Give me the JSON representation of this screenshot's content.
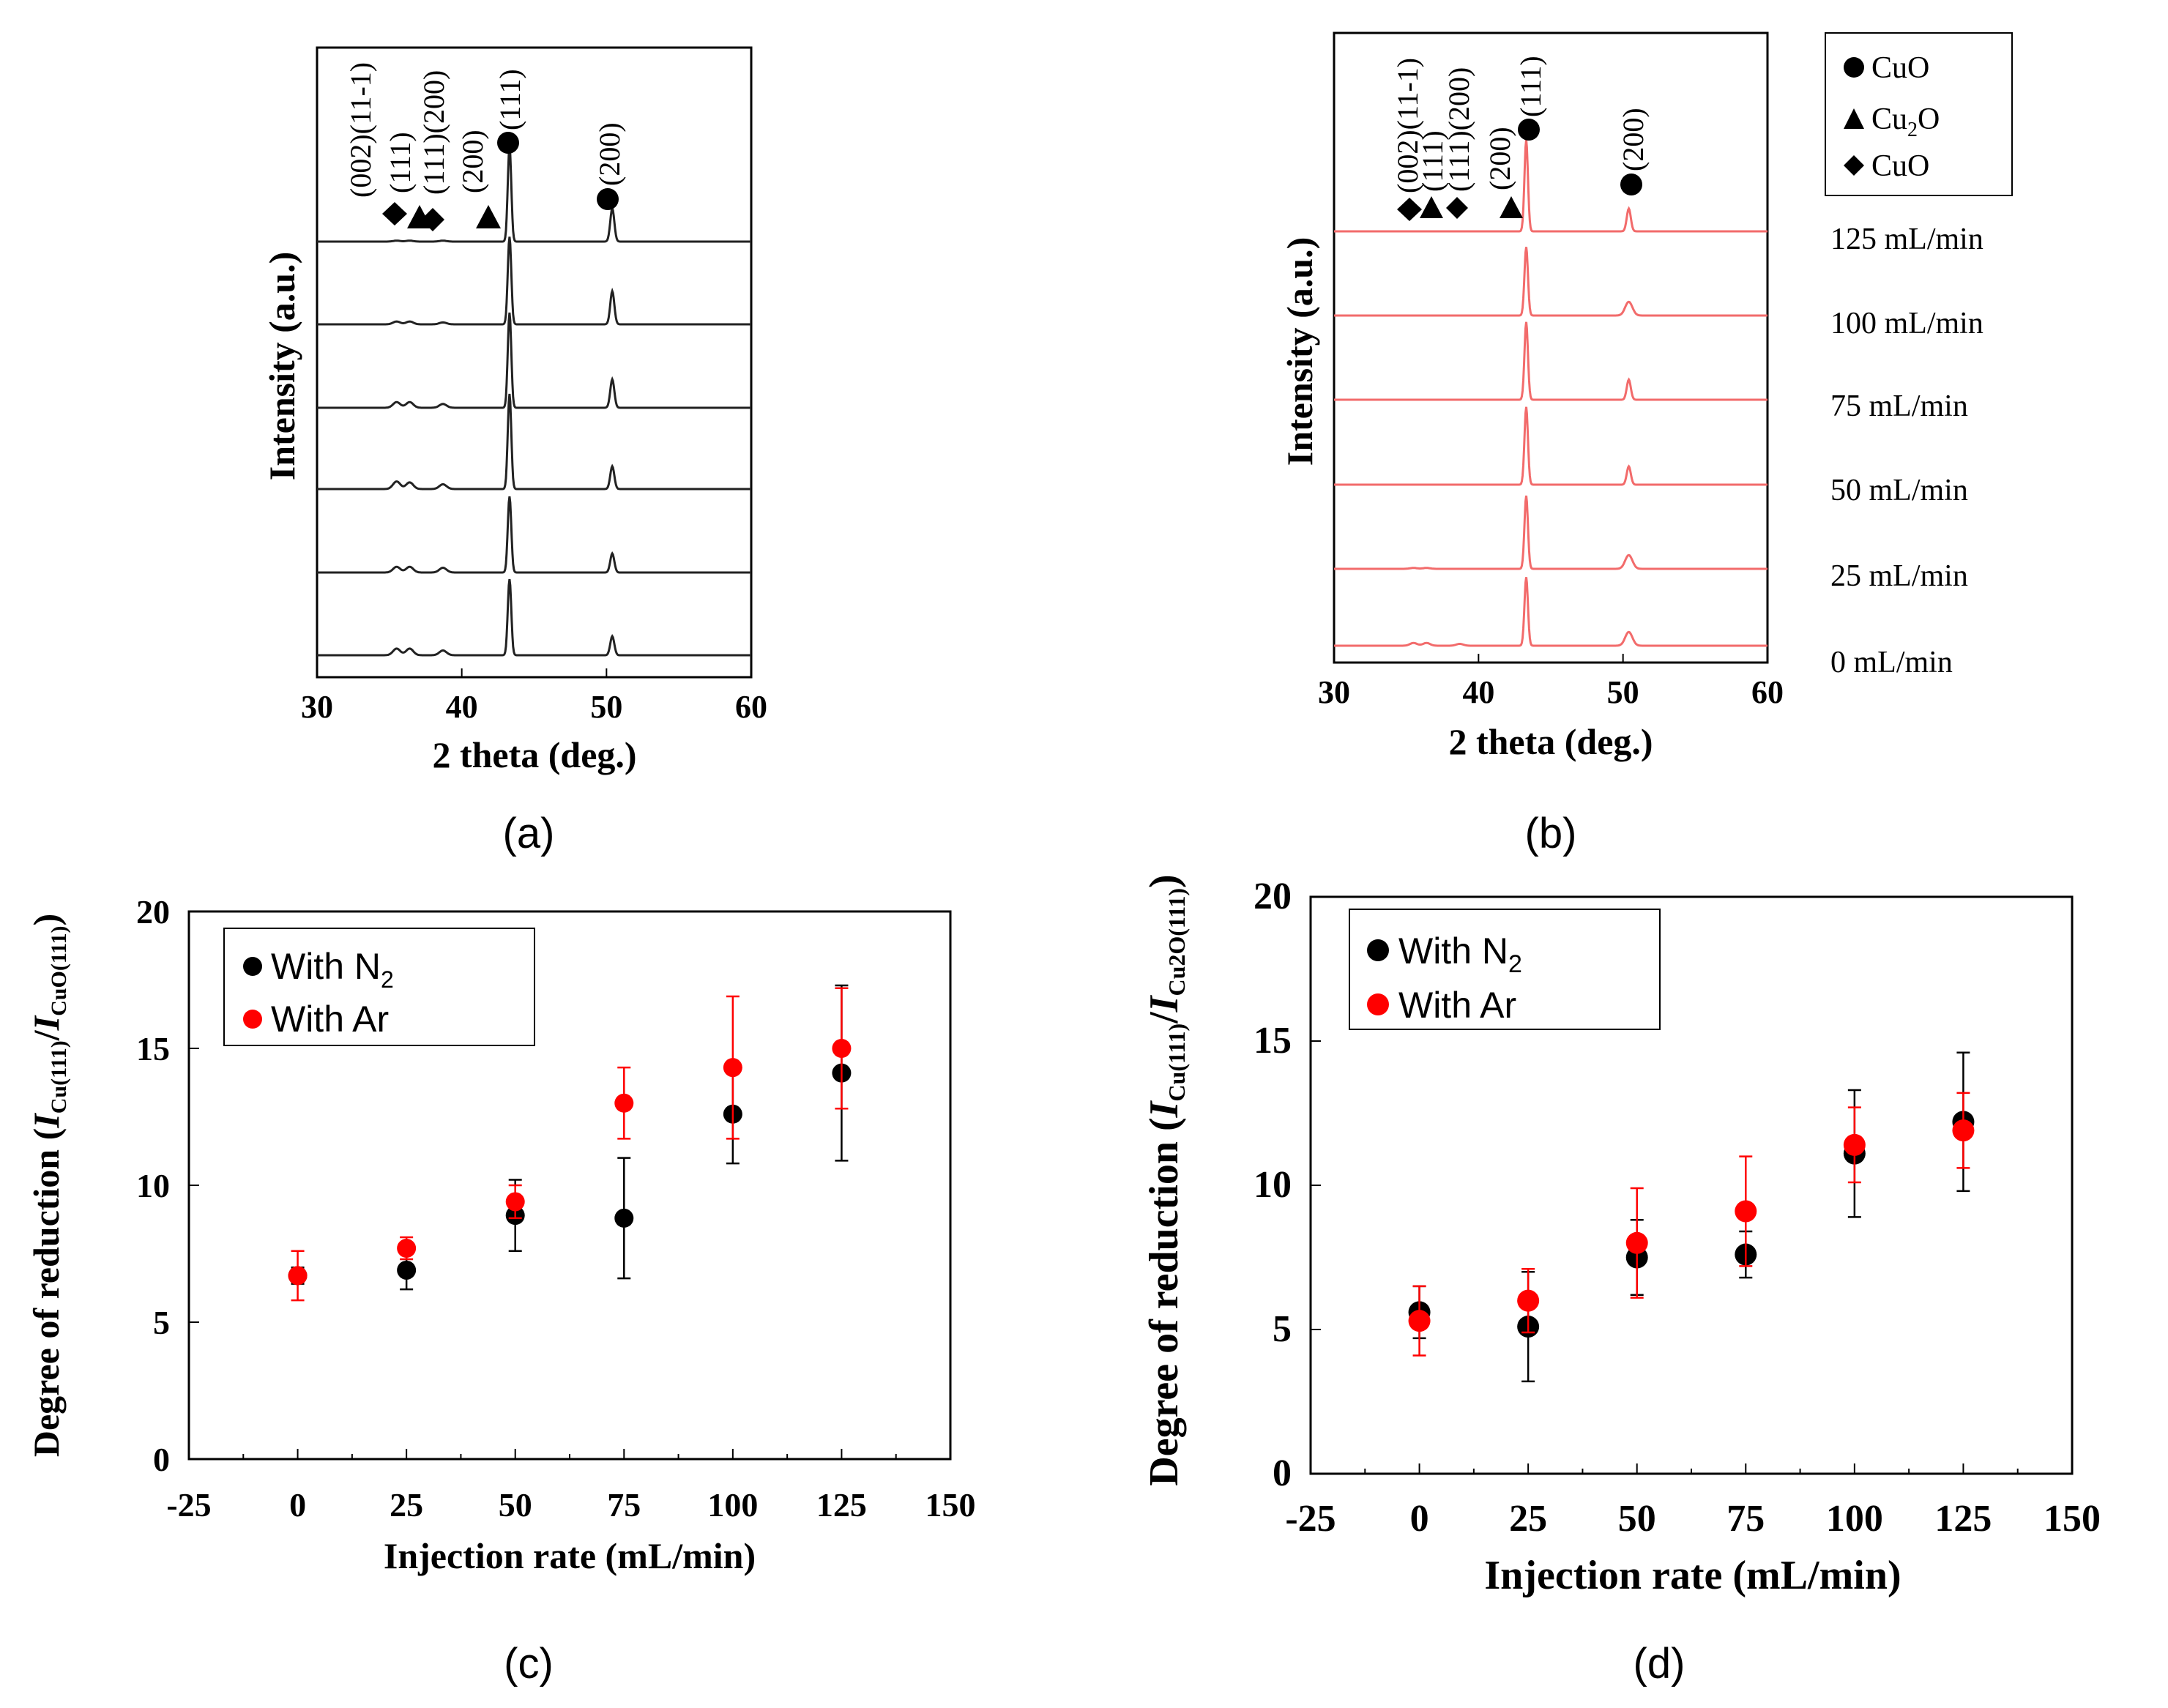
{
  "captions": {
    "a": "(a)",
    "b": "(b)",
    "c": "(c)",
    "d": "(d)"
  },
  "peak_labels": {
    "cuo_002_111": "(002)(11-1)",
    "cu2o_111": "(111)",
    "cuo_111_200": "(111)(200)",
    "cu2o_200": "(200)",
    "cu_111": "(111)",
    "cu_200": "(200)"
  },
  "legend_b": {
    "cuo_circle": "CuO",
    "cu2o_tri_main": "Cu",
    "cu2o_tri_sub": "2",
    "cu2o_tri_tail": "O",
    "cuo_diamond": "CuO"
  },
  "legend_cd": {
    "n2_main": "With N",
    "n2_sub": "2",
    "ar": "With Ar"
  },
  "colors": {
    "n2": "#000000",
    "ar": "#ff0000",
    "xrd_b": "#f26b6b"
  },
  "chart_data": [
    {
      "id": "a",
      "type": "line",
      "title": "",
      "xlabel": "2 theta (deg.)",
      "ylabel": "Intensity (a.u.)",
      "xlim": [
        30,
        60
      ],
      "xticks": [
        "30",
        "40",
        "50",
        "60"
      ],
      "series": [
        {
          "name": "125 mL/min",
          "peaks": [
            {
              "x": 35.5,
              "h": 0.01
            },
            {
              "x": 36.4,
              "h": 0.01
            },
            {
              "x": 38.7,
              "h": 0.01
            },
            {
              "x": 43.3,
              "h": 1.0
            },
            {
              "x": 50.4,
              "h": 0.35
            }
          ]
        },
        {
          "name": "100 mL/min",
          "peaks": [
            {
              "x": 35.5,
              "h": 0.03
            },
            {
              "x": 36.4,
              "h": 0.03
            },
            {
              "x": 38.7,
              "h": 0.02
            },
            {
              "x": 43.3,
              "h": 0.92
            },
            {
              "x": 50.4,
              "h": 0.35
            }
          ]
        },
        {
          "name": "75 mL/min",
          "peaks": [
            {
              "x": 35.5,
              "h": 0.06
            },
            {
              "x": 36.4,
              "h": 0.06
            },
            {
              "x": 38.7,
              "h": 0.04
            },
            {
              "x": 43.3,
              "h": 1.0
            },
            {
              "x": 50.4,
              "h": 0.3
            }
          ]
        },
        {
          "name": "50 mL/min",
          "peaks": [
            {
              "x": 35.5,
              "h": 0.08
            },
            {
              "x": 36.4,
              "h": 0.07
            },
            {
              "x": 38.7,
              "h": 0.05
            },
            {
              "x": 43.3,
              "h": 1.0
            },
            {
              "x": 50.4,
              "h": 0.24
            }
          ]
        },
        {
          "name": "25 mL/min",
          "peaks": [
            {
              "x": 35.5,
              "h": 0.06
            },
            {
              "x": 36.4,
              "h": 0.06
            },
            {
              "x": 38.7,
              "h": 0.05
            },
            {
              "x": 43.3,
              "h": 0.8
            },
            {
              "x": 50.4,
              "h": 0.2
            }
          ]
        },
        {
          "name": "0 mL/min",
          "peaks": [
            {
              "x": 35.5,
              "h": 0.07
            },
            {
              "x": 36.4,
              "h": 0.07
            },
            {
              "x": 38.7,
              "h": 0.05
            },
            {
              "x": 43.3,
              "h": 0.8
            },
            {
              "x": 50.4,
              "h": 0.2
            }
          ]
        }
      ]
    },
    {
      "id": "b",
      "type": "line",
      "title": "",
      "xlabel": "2 theta (deg.)",
      "ylabel": "Intensity (a.u.)",
      "xlim": [
        30,
        60
      ],
      "xticks": [
        "30",
        "40",
        "50",
        "60"
      ],
      "series": [
        {
          "name": "125 mL/min",
          "peaks": [
            {
              "x": 35.5,
              "h": 0.0
            },
            {
              "x": 36.4,
              "h": 0.0
            },
            {
              "x": 38.7,
              "h": 0.0
            },
            {
              "x": 43.3,
              "h": 1.0
            },
            {
              "x": 50.4,
              "h": 0.25
            }
          ]
        },
        {
          "name": "100 mL/min",
          "peaks": [
            {
              "x": 35.5,
              "h": 0.0
            },
            {
              "x": 36.4,
              "h": 0.0
            },
            {
              "x": 38.7,
              "h": 0.0
            },
            {
              "x": 43.3,
              "h": 0.75
            },
            {
              "x": 50.4,
              "h": 0.15
            }
          ]
        },
        {
          "name": "75 mL/min",
          "peaks": [
            {
              "x": 35.5,
              "h": 0.0
            },
            {
              "x": 36.4,
              "h": 0.0
            },
            {
              "x": 38.7,
              "h": 0.0
            },
            {
              "x": 43.3,
              "h": 0.85
            },
            {
              "x": 50.4,
              "h": 0.22
            }
          ]
        },
        {
          "name": "50 mL/min",
          "peaks": [
            {
              "x": 35.5,
              "h": 0.0
            },
            {
              "x": 36.4,
              "h": 0.0
            },
            {
              "x": 38.7,
              "h": 0.0
            },
            {
              "x": 43.3,
              "h": 0.85
            },
            {
              "x": 50.4,
              "h": 0.2
            }
          ]
        },
        {
          "name": "25 mL/min",
          "peaks": [
            {
              "x": 35.5,
              "h": 0.01
            },
            {
              "x": 36.4,
              "h": 0.01
            },
            {
              "x": 38.7,
              "h": 0.0
            },
            {
              "x": 43.3,
              "h": 0.8
            },
            {
              "x": 50.4,
              "h": 0.15
            }
          ]
        },
        {
          "name": "0 mL/min",
          "peaks": [
            {
              "x": 35.5,
              "h": 0.03
            },
            {
              "x": 36.4,
              "h": 0.03
            },
            {
              "x": 38.7,
              "h": 0.02
            },
            {
              "x": 43.3,
              "h": 0.75
            },
            {
              "x": 50.4,
              "h": 0.15
            }
          ]
        }
      ]
    },
    {
      "id": "c",
      "type": "scatter",
      "title": "",
      "xlabel": "Injection rate (mL/min)",
      "ylabel_main": "Degree of reduction (",
      "ylabel_I1": "I",
      "ylabel_sub1": "Cu(111)",
      "ylabel_slash": "/",
      "ylabel_I2": "I",
      "ylabel_sub2": "CuO(111)",
      "ylabel_close": ")",
      "xlim": [
        -25,
        150
      ],
      "ylim": [
        0,
        20
      ],
      "xticks": [
        "-25",
        "0",
        "25",
        "50",
        "75",
        "100",
        "125",
        "150"
      ],
      "yticks": [
        "0",
        "5",
        "10",
        "15",
        "20"
      ],
      "series": [
        {
          "name": "With N2",
          "x": [
            0,
            25,
            50,
            75,
            100,
            125
          ],
          "y": [
            6.7,
            6.9,
            8.9,
            8.8,
            12.6,
            14.1
          ],
          "err": [
            0.3,
            0.7,
            1.3,
            2.2,
            1.8,
            3.2
          ]
        },
        {
          "name": "With Ar",
          "x": [
            0,
            25,
            50,
            75,
            100,
            125
          ],
          "y": [
            6.7,
            7.7,
            9.4,
            13.0,
            14.3,
            15.0
          ],
          "err": [
            0.9,
            0.4,
            0.6,
            1.3,
            2.6,
            2.2
          ]
        }
      ]
    },
    {
      "id": "d",
      "type": "scatter",
      "title": "",
      "xlabel": "Injection rate (mL/min)",
      "ylabel_main": "Degree of reduction (",
      "ylabel_I1": "I",
      "ylabel_sub1": "Cu(111)",
      "ylabel_slash": "/",
      "ylabel_I2": "I",
      "ylabel_sub2": "Cu2O(111)",
      "ylabel_close": ")",
      "xlim": [
        -25,
        150
      ],
      "ylim": [
        0,
        20
      ],
      "xticks": [
        "-25",
        "0",
        "25",
        "50",
        "75",
        "100",
        "125",
        "150"
      ],
      "yticks": [
        "0",
        "5",
        "10",
        "15",
        "20"
      ],
      "series": [
        {
          "name": "With N2",
          "x": [
            0,
            25,
            50,
            75,
            100,
            125
          ],
          "y": [
            5.6,
            5.1,
            7.5,
            7.6,
            11.1,
            12.2
          ],
          "err": [
            0.9,
            1.9,
            1.3,
            0.8,
            2.2,
            2.4
          ]
        },
        {
          "name": "With Ar",
          "x": [
            0,
            25,
            50,
            75,
            100,
            125
          ],
          "y": [
            5.3,
            6.0,
            8.0,
            9.1,
            11.4,
            11.9
          ],
          "err": [
            1.2,
            1.1,
            1.9,
            1.9,
            1.3,
            1.3
          ]
        }
      ]
    }
  ]
}
